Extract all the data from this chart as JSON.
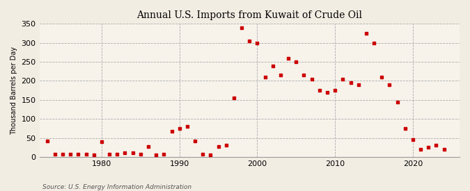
{
  "title": "Annual U.S. Imports from Kuwait of Crude Oil",
  "ylabel": "Thousand Barrels per Day",
  "source": "Source: U.S. Energy Information Administration",
  "background_color": "#f2ede3",
  "plot_background_color": "#f7f3eb",
  "marker_color": "#cc0000",
  "years": [
    1973,
    1974,
    1975,
    1976,
    1977,
    1978,
    1979,
    1980,
    1981,
    1982,
    1983,
    1984,
    1985,
    1986,
    1987,
    1988,
    1989,
    1990,
    1991,
    1992,
    1993,
    1994,
    1995,
    1996,
    1997,
    1998,
    1999,
    2000,
    2001,
    2002,
    2003,
    2004,
    2005,
    2006,
    2007,
    2008,
    2009,
    2010,
    2011,
    2012,
    2013,
    2014,
    2015,
    2016,
    2017,
    2018,
    2019,
    2020,
    2021,
    2022,
    2023,
    2024
  ],
  "values": [
    42,
    8,
    7,
    7,
    7,
    7,
    6,
    40,
    7,
    7,
    10,
    10,
    8,
    28,
    5,
    8,
    68,
    75,
    80,
    42,
    8,
    5,
    28,
    30,
    155,
    340,
    305,
    300,
    210,
    240,
    215,
    260,
    250,
    215,
    205,
    175,
    170,
    175,
    205,
    195,
    190,
    325,
    300,
    210,
    190,
    145,
    75,
    45,
    20,
    25,
    30,
    20
  ],
  "ylim": [
    0,
    350
  ],
  "yticks": [
    0,
    50,
    100,
    150,
    200,
    250,
    300,
    350
  ],
  "xtick_positions": [
    1980,
    1990,
    2000,
    2010,
    2020
  ],
  "xlim": [
    1972,
    2026
  ],
  "grid_color": "#aaaaaa",
  "title_fontsize": 10,
  "marker_size": 10
}
